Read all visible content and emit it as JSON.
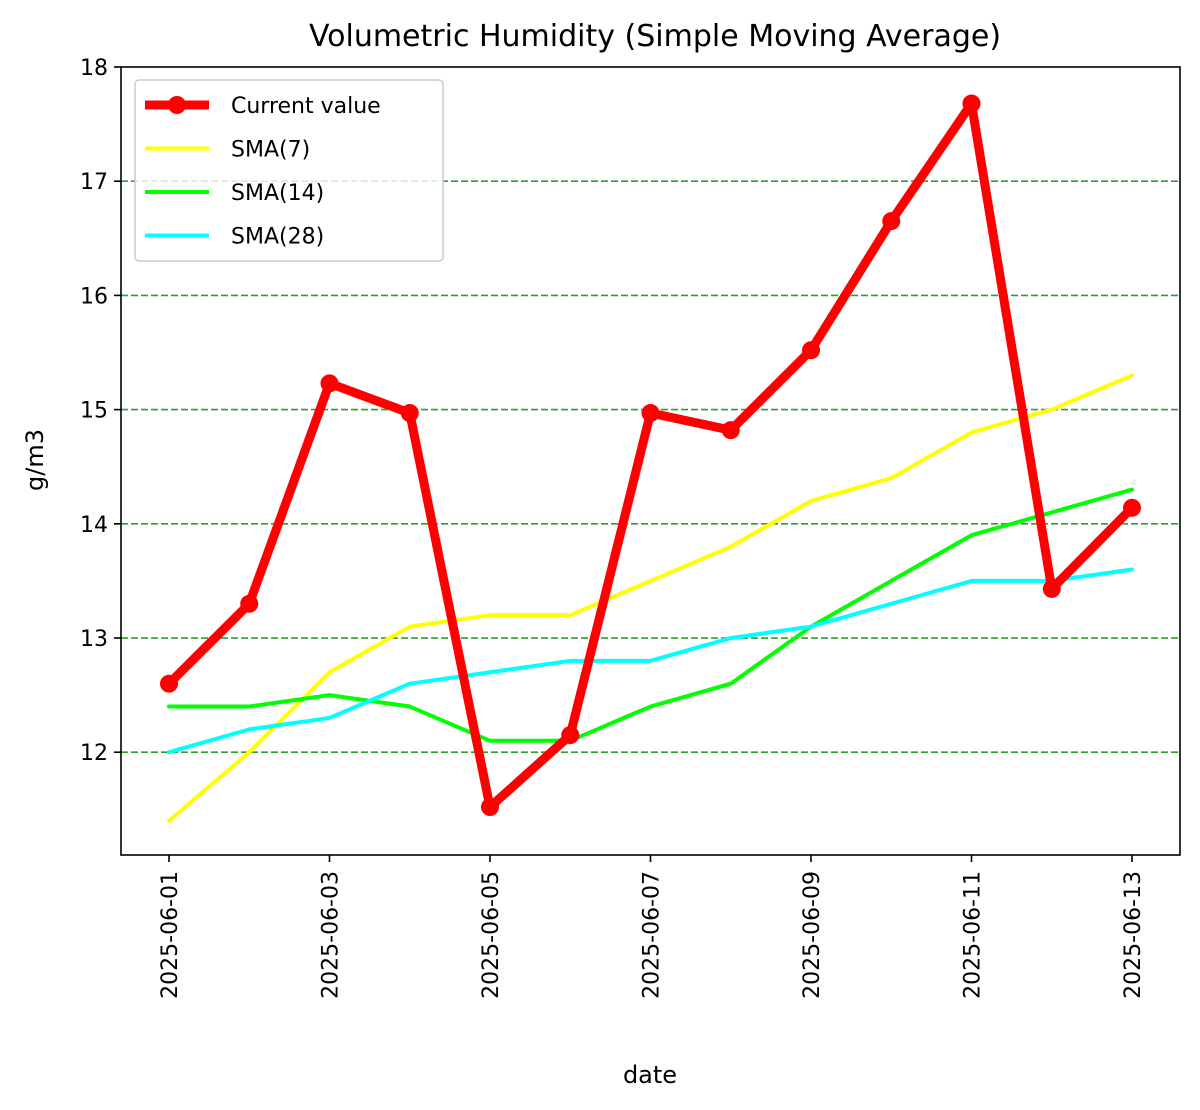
{
  "chart_data": {
    "type": "line",
    "title": "Volumetric Humidity (Simple Moving Average)",
    "xlabel": "date",
    "ylabel": "g/m3",
    "x": [
      "2025-06-01",
      "2025-06-02",
      "2025-06-03",
      "2025-06-04",
      "2025-06-05",
      "2025-06-06",
      "2025-06-07",
      "2025-06-08",
      "2025-06-09",
      "2025-06-10",
      "2025-06-11",
      "2025-06-12",
      "2025-06-13"
    ],
    "x_ticks": [
      "2025-06-01",
      "2025-06-03",
      "2025-06-05",
      "2025-06-07",
      "2025-06-09",
      "2025-06-11",
      "2025-06-13"
    ],
    "ylim": [
      11.1,
      18.0
    ],
    "y_ticks": [
      12,
      13,
      14,
      15,
      16,
      17,
      18
    ],
    "grid": "horizontal dashed",
    "legend_position": "top-left",
    "series": [
      {
        "name": "Current value",
        "color": "#ff0000",
        "marker": "circle",
        "values": [
          12.6,
          13.3,
          15.23,
          14.97,
          11.52,
          12.15,
          14.97,
          14.82,
          15.52,
          16.65,
          17.68,
          13.43,
          14.14
        ]
      },
      {
        "name": "SMA(7)",
        "color": "#ffff00",
        "values": [
          11.4,
          12.0,
          12.7,
          13.1,
          13.2,
          13.2,
          13.5,
          13.8,
          14.2,
          14.4,
          14.8,
          15.0,
          15.3
        ]
      },
      {
        "name": "SMA(14)",
        "color": "#00ff00",
        "values": [
          12.4,
          12.4,
          12.5,
          12.4,
          12.1,
          12.1,
          12.4,
          12.6,
          13.1,
          13.5,
          13.9,
          14.1,
          14.3
        ]
      },
      {
        "name": "SMA(28)",
        "color": "#00ffff",
        "values": [
          12.0,
          12.2,
          12.3,
          12.6,
          12.7,
          12.8,
          12.8,
          13.0,
          13.1,
          13.3,
          13.5,
          13.5,
          13.6
        ]
      }
    ]
  }
}
